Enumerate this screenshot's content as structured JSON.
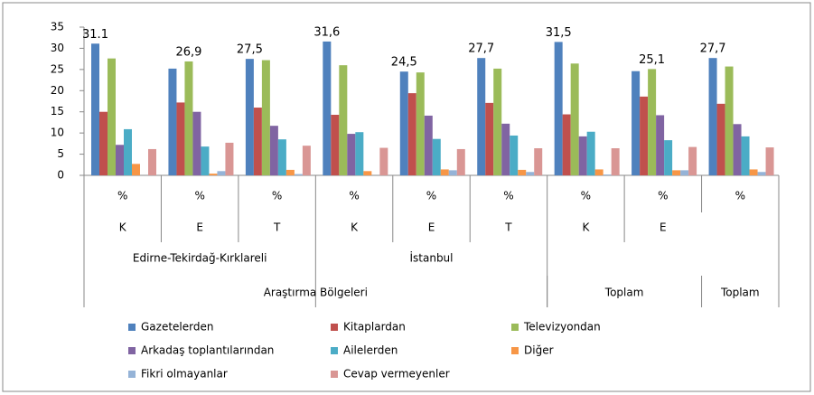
{
  "chart_data": {
    "type": "bar",
    "categories": [
      "%",
      "%",
      "%",
      "%",
      "%",
      "%",
      "%",
      "%",
      "%"
    ],
    "category_levels": [
      [
        "K",
        "E",
        "T",
        "K",
        "E",
        "T",
        "K",
        "E",
        null
      ],
      [
        {
          "label": "Edirne-Tekirdağ-Kırklareli",
          "span": 3
        },
        {
          "label": "İstanbul",
          "span": 3
        }
      ],
      [
        {
          "label": "Araştırma Bölgeleri",
          "span": 6
        },
        {
          "label": "Toplam",
          "span": 2
        },
        {
          "label": "Toplam",
          "span": 1
        }
      ]
    ],
    "series": [
      {
        "name": "Gazetelerden",
        "color": "#4f81bd",
        "values": [
          31.1,
          25.2,
          27.5,
          31.6,
          24.5,
          27.7,
          31.5,
          24.6,
          27.7
        ],
        "value_labels": [
          "31.1",
          null,
          "27,5",
          "31,6",
          "24,5",
          "27,7",
          "31,5",
          null,
          "27,7"
        ]
      },
      {
        "name": "Kitaplardan",
        "color": "#c0504d",
        "values": [
          15,
          17.2,
          16,
          14.3,
          19.4,
          17.1,
          14.4,
          18.6,
          16.9
        ]
      },
      {
        "name": "Televizyondan",
        "color": "#9bbb59",
        "values": [
          27.6,
          26.9,
          27.2,
          26,
          24.3,
          25.2,
          26.4,
          25.1,
          25.7
        ],
        "value_labels": [
          null,
          "26,9",
          null,
          null,
          null,
          null,
          null,
          "25,1",
          null
        ]
      },
      {
        "name": "Arkadaş toplantılarından",
        "color": "#8064a2",
        "values": [
          7.2,
          15,
          11.7,
          9.8,
          14.1,
          12.2,
          9.2,
          14.2,
          12.1
        ]
      },
      {
        "name": "Ailelerden",
        "color": "#4bacc6",
        "values": [
          10.9,
          6.8,
          8.5,
          10.2,
          8.6,
          9.4,
          10.3,
          8.3,
          9.2
        ]
      },
      {
        "name": "Diğer",
        "color": "#f79646",
        "values": [
          2.7,
          0.4,
          1.3,
          1,
          1.4,
          1.3,
          1.4,
          1.2,
          1.4
        ]
      },
      {
        "name": "Fikri olmayanlar",
        "color": "#95b3d7",
        "values": [
          0,
          1,
          0.3,
          0,
          1.2,
          0.8,
          0.2,
          1.2,
          0.8
        ]
      },
      {
        "name": "Cevap vermeyenler",
        "color": "#d99694",
        "values": [
          6.2,
          7.7,
          7,
          6.5,
          6.2,
          6.4,
          6.4,
          6.7,
          6.6
        ]
      }
    ],
    "ylim": [
      0,
      35
    ],
    "yticks": [
      0,
      5,
      10,
      15,
      20,
      25,
      30,
      35
    ]
  }
}
